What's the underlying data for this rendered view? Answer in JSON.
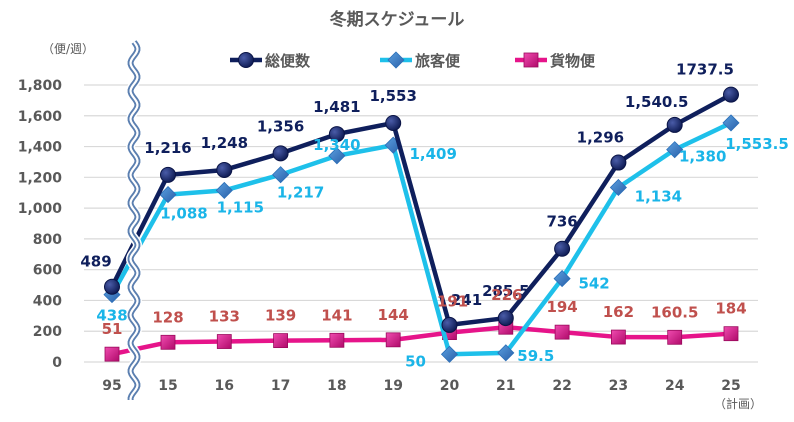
{
  "chart_data": {
    "type": "line",
    "title": "冬期スケジュール",
    "ylabel": "（便/週）",
    "xlabel": "",
    "categories": [
      "95",
      "15",
      "16",
      "17",
      "18",
      "19",
      "20",
      "21",
      "22",
      "23",
      "24",
      "25"
    ],
    "x_note": "（計画）",
    "x_note_category": "25",
    "axis_break_after": "95",
    "ylim": [
      0,
      1800
    ],
    "yticks": [
      0,
      200,
      400,
      600,
      800,
      1000,
      1200,
      1400,
      1600,
      1800
    ],
    "ytick_labels": [
      "0",
      "200",
      "400",
      "600",
      "800",
      "1,000",
      "1,200",
      "1,400",
      "1,600",
      "1,800"
    ],
    "grid": true,
    "legend_position": "top-center",
    "series": [
      {
        "name": "総便数",
        "color": "#0f1f5c",
        "marker": "circle",
        "label_color": "#0f1f5c",
        "values": [
          489,
          1216,
          1248,
          1356,
          1481,
          1553,
          241,
          285.5,
          736,
          1296,
          1540.5,
          1737.5
        ],
        "labels": [
          "489",
          "1,216",
          "1,248",
          "1,356",
          "1,481",
          "1,553",
          "241",
          "285.5",
          "736",
          "1,296",
          "1,540.5",
          "1737.5"
        ]
      },
      {
        "name": "旅客便",
        "color": "#1ec0ea",
        "marker": "diamond",
        "label_color": "#1ab5e8",
        "values": [
          438,
          1088,
          1115,
          1217,
          1340,
          1409,
          50,
          59.5,
          542,
          1134,
          1380,
          1553.5
        ],
        "labels": [
          "438",
          "1,088",
          "1,115",
          "1,217",
          "1,340",
          "1,409",
          "50",
          "59.5",
          "542",
          "1,134",
          "1,380",
          "1,553.5"
        ]
      },
      {
        "name": "貨物便",
        "color": "#e6148a",
        "marker": "square",
        "label_color": "#c0504d",
        "values": [
          51,
          128,
          133,
          139,
          141,
          144,
          191,
          226,
          194,
          162,
          160.5,
          184
        ],
        "labels": [
          "51",
          "128",
          "133",
          "139",
          "141",
          "144",
          "191",
          "226",
          "194",
          "162",
          "160.5",
          "184"
        ]
      }
    ]
  }
}
